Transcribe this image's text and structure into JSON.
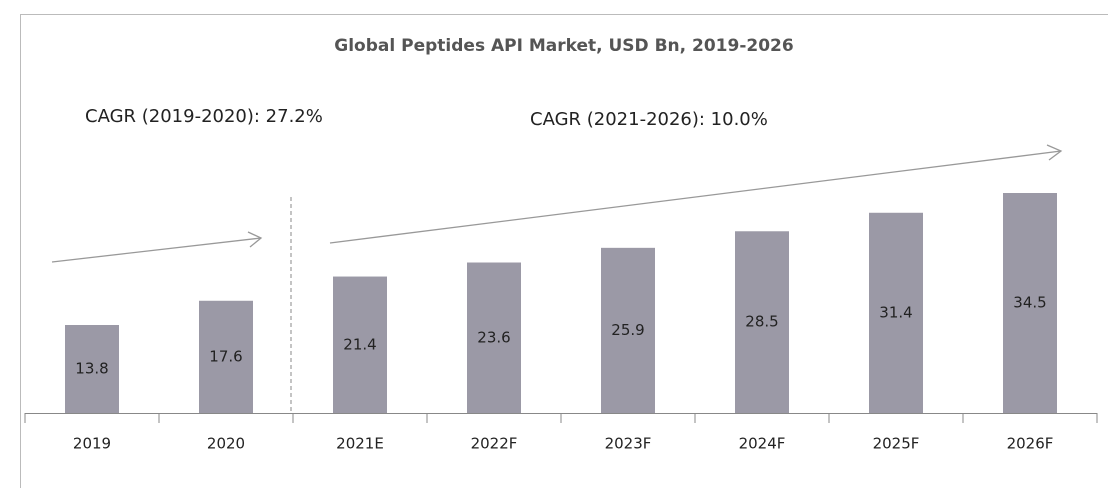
{
  "chart_data": {
    "type": "bar",
    "title": "Global Peptides API Market, USD  Bn, 2019-2026",
    "annotations": [
      "CAGR (2019-2020): 27.2%",
      "CAGR (2021-2026): 10.0%"
    ],
    "categories": [
      "2019",
      "2020",
      "2021E",
      "2022F",
      "2023F",
      "2024F",
      "2025F",
      "2026F"
    ],
    "values": [
      13.8,
      17.6,
      21.4,
      23.6,
      25.9,
      28.5,
      31.4,
      34.5
    ],
    "color": "#9b99a6"
  }
}
